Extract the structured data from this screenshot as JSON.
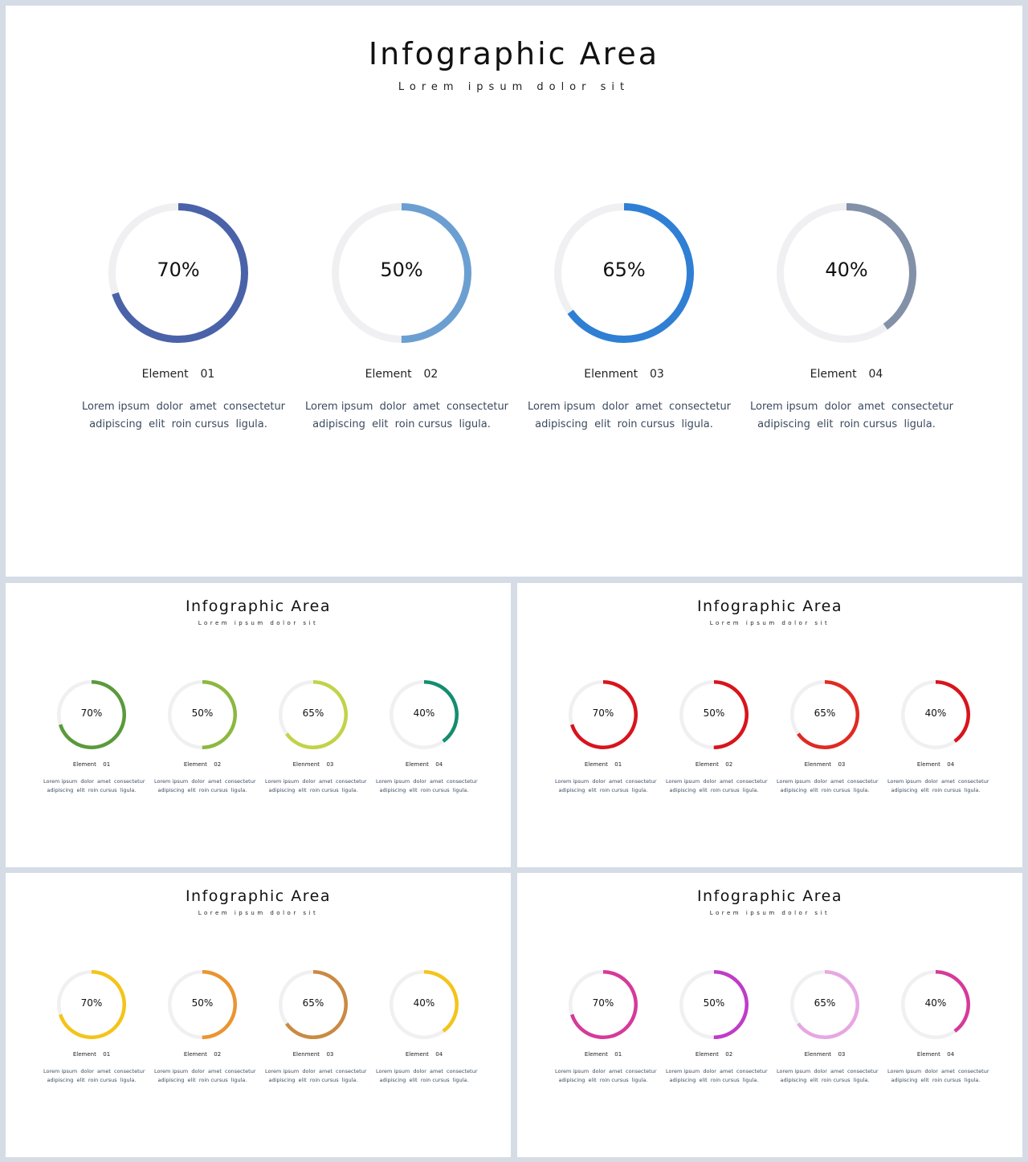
{
  "slides": [
    {
      "id": "main",
      "title": "Infographic Area",
      "subtitle": "Lorem ipsum dolor sit",
      "track_color": "#f0f0f2",
      "items": [
        {
          "percent": "70%",
          "value": 0.7,
          "color": "#4a62a8",
          "label": "Element  01",
          "desc1": "Lorem ipsum  dolor  amet  consectetur",
          "desc2": "adipiscing  elit  roin cursus  ligula."
        },
        {
          "percent": "50%",
          "value": 0.5,
          "color": "#6b9fd2",
          "label": "Element  02",
          "desc1": "Lorem ipsum  dolor  amet  consectetur",
          "desc2": "adipiscing  elit  roin cursus  ligula."
        },
        {
          "percent": "65%",
          "value": 0.65,
          "color": "#2f7fd4",
          "label": "Elenment  03",
          "desc1": "Lorem ipsum  dolor  amet  consectetur",
          "desc2": "adipiscing  elit  roin cursus  ligula."
        },
        {
          "percent": "40%",
          "value": 0.4,
          "color": "#8291a8",
          "label": "Element  04",
          "desc1": "Lorem ipsum  dolor  amet  consectetur",
          "desc2": "adipiscing  elit  roin cursus  ligula."
        }
      ]
    },
    {
      "id": "green",
      "title": "Infographic Area",
      "subtitle": "Lorem ipsum dolor sit",
      "track_color": "#f0f0f2",
      "items": [
        {
          "percent": "70%",
          "value": 0.7,
          "color": "#5a9a3c",
          "label": "Element  01",
          "desc1": "Lorem ipsum  dolor  amet  consectetur",
          "desc2": "adipiscing  elit  roin cursus  ligula."
        },
        {
          "percent": "50%",
          "value": 0.5,
          "color": "#8cb840",
          "label": "Element  02",
          "desc1": "Lorem ipsum  dolor  amet  consectetur",
          "desc2": "adipiscing  elit  roin cursus  ligula."
        },
        {
          "percent": "65%",
          "value": 0.65,
          "color": "#c2d348",
          "label": "Elenment  03",
          "desc1": "Lorem ipsum  dolor  amet  consectetur",
          "desc2": "adipiscing  elit  roin cursus  ligula."
        },
        {
          "percent": "40%",
          "value": 0.4,
          "color": "#138d70",
          "label": "Element  04",
          "desc1": "Lorem ipsum  dolor  amet  consectetur",
          "desc2": "adipiscing  elit  roin cursus  ligula."
        }
      ]
    },
    {
      "id": "red",
      "title": "Infographic Area",
      "subtitle": "Lorem ipsum dolor sit",
      "track_color": "#f0f0f2",
      "items": [
        {
          "percent": "70%",
          "value": 0.7,
          "color": "#d8141c",
          "label": "Element  01",
          "desc1": "Lorem ipsum  dolor  amet  consectetur",
          "desc2": "adipiscing  elit  roin cursus  ligula."
        },
        {
          "percent": "50%",
          "value": 0.5,
          "color": "#d8141c",
          "label": "Element  02",
          "desc1": "Lorem ipsum  dolor  amet  consectetur",
          "desc2": "adipiscing  elit  roin cursus  ligula."
        },
        {
          "percent": "65%",
          "value": 0.65,
          "color": "#e02a22",
          "label": "Elenment  03",
          "desc1": "Lorem ipsum  dolor  amet  consectetur",
          "desc2": "adipiscing  elit  roin cursus  ligula."
        },
        {
          "percent": "40%",
          "value": 0.4,
          "color": "#d8141c",
          "label": "Element  04",
          "desc1": "Lorem ipsum  dolor  amet  consectetur",
          "desc2": "adipiscing  elit  roin cursus  ligula."
        }
      ]
    },
    {
      "id": "yellow",
      "title": "Infographic Area",
      "subtitle": "Lorem ipsum dolor sit",
      "track_color": "#f0f0f2",
      "items": [
        {
          "percent": "70%",
          "value": 0.7,
          "color": "#f3c51a",
          "label": "Element  01",
          "desc1": "Lorem ipsum  dolor  amet  consectetur",
          "desc2": "adipiscing  elit  roin cursus  ligula."
        },
        {
          "percent": "50%",
          "value": 0.5,
          "color": "#ea9530",
          "label": "Element  02",
          "desc1": "Lorem ipsum  dolor  amet  consectetur",
          "desc2": "adipiscing  elit  roin cursus  ligula."
        },
        {
          "percent": "65%",
          "value": 0.65,
          "color": "#c98a42",
          "label": "Elenment  03",
          "desc1": "Lorem ipsum  dolor  amet  consectetur",
          "desc2": "adipiscing  elit  roin cursus  ligula."
        },
        {
          "percent": "40%",
          "value": 0.4,
          "color": "#f3c51a",
          "label": "Element  04",
          "desc1": "Lorem ipsum  dolor  amet  consectetur",
          "desc2": "adipiscing  elit  roin cursus  ligula."
        }
      ]
    },
    {
      "id": "pink",
      "title": "Infographic Area",
      "subtitle": "Lorem ipsum dolor sit",
      "track_color": "#f0f0f2",
      "items": [
        {
          "percent": "70%",
          "value": 0.7,
          "color": "#d63a9a",
          "label": "Element  01",
          "desc1": "Lorem ipsum  dolor  amet  consectetur",
          "desc2": "adipiscing  elit  roin cursus  ligula."
        },
        {
          "percent": "50%",
          "value": 0.5,
          "color": "#bf3cc8",
          "label": "Element  02",
          "desc1": "Lorem ipsum  dolor  amet  consectetur",
          "desc2": "adipiscing  elit  roin cursus  ligula."
        },
        {
          "percent": "65%",
          "value": 0.65,
          "color": "#e6a8e2",
          "label": "Elenment  03",
          "desc1": "Lorem ipsum  dolor  amet  consectetur",
          "desc2": "adipiscing  elit  roin cursus  ligula."
        },
        {
          "percent": "40%",
          "value": 0.4,
          "color": "#d63a9a",
          "label": "Element  04",
          "desc1": "Lorem ipsum  dolor  amet  consectetur",
          "desc2": "adipiscing  elit  roin cursus  ligula."
        }
      ]
    }
  ]
}
